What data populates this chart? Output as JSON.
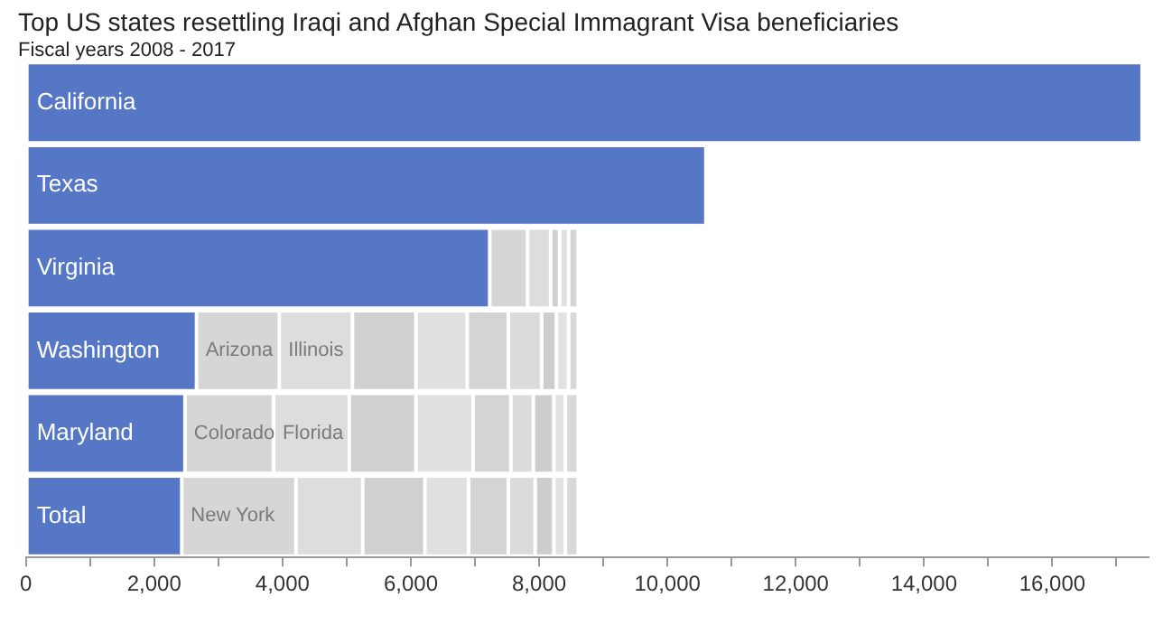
{
  "chart_data": {
    "type": "bar",
    "orientation": "horizontal",
    "stacked": true,
    "title": "Top US states resettling Iraqi and Afghan Special Immagrant Visa beneficiaries",
    "subtitle": "Fiscal years 2008 - 2017",
    "categories": [
      "California",
      "Texas",
      "Virginia",
      "Washington",
      "Maryland",
      "Total"
    ],
    "series": [
      {
        "color": "#5677c6",
        "values": [
          17400,
          10600,
          7230,
          2660,
          2480,
          2430
        ]
      },
      {
        "color": "#d6d6d6",
        "values": [
          null,
          null,
          590,
          1290,
          1380,
          1780
        ],
        "value_labels": [
          null,
          null,
          null,
          "Arizona",
          "Colorado",
          "New York"
        ]
      },
      {
        "color": "#dddddd",
        "values": [
          null,
          null,
          360,
          1140,
          1180,
          1040
        ],
        "value_labels": [
          null,
          null,
          null,
          "Illinois",
          "Florida",
          null
        ]
      },
      {
        "color": "#d0d0d0",
        "values": [
          null,
          null,
          140,
          990,
          1040,
          970
        ]
      },
      {
        "color": "#e0e0e0",
        "values": [
          null,
          null,
          140,
          800,
          890,
          680
        ]
      },
      {
        "color": "#d4d4d4",
        "values": [
          null,
          null,
          150,
          640,
          590,
          620
        ]
      },
      {
        "color": "#dbdbdb",
        "values": [
          null,
          null,
          null,
          520,
          350,
          420
        ]
      },
      {
        "color": "#cdcdcd",
        "values": [
          null,
          null,
          null,
          230,
          320,
          290
        ]
      },
      {
        "color": "#e2e2e2",
        "values": [
          null,
          null,
          null,
          190,
          180,
          180
        ]
      },
      {
        "color": "#d8d8d8",
        "values": [
          null,
          null,
          null,
          150,
          200,
          200
        ]
      }
    ],
    "xlim": [
      0,
      17500
    ],
    "xticks": [
      0,
      {
        "value": 1000,
        "label": null
      },
      {
        "value": 2000,
        "label": "2,000"
      },
      {
        "value": 3000,
        "label": null
      },
      {
        "value": 4000,
        "label": "4,000"
      },
      {
        "value": 5000,
        "label": null
      },
      {
        "value": 6000,
        "label": "6,000"
      },
      {
        "value": 7000,
        "label": null
      },
      {
        "value": 8000,
        "label": "8,000"
      },
      {
        "value": 9000,
        "label": null
      },
      {
        "value": 10000,
        "label": "10,000"
      },
      {
        "value": 11000,
        "label": null
      },
      {
        "value": 12000,
        "label": "12,000"
      },
      {
        "value": 13000,
        "label": null
      },
      {
        "value": 14000,
        "label": "14,000"
      },
      {
        "value": 15000,
        "label": null
      },
      {
        "value": 16000,
        "label": "16,000"
      },
      {
        "value": 17000,
        "label": null
      }
    ],
    "grid": false,
    "legend": false
  }
}
